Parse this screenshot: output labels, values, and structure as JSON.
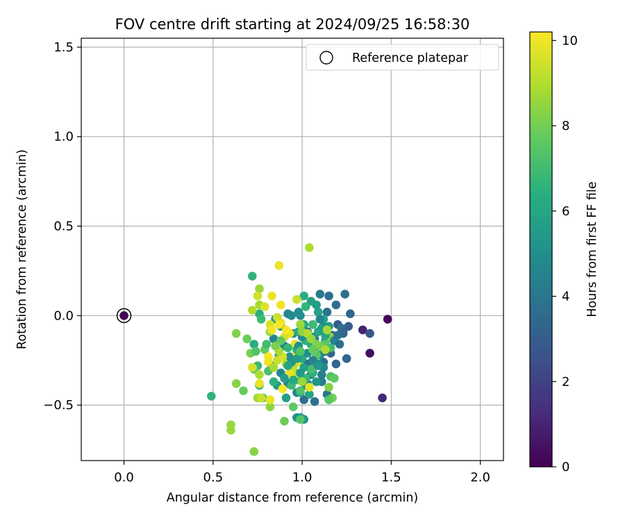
{
  "chart_data": {
    "type": "scatter",
    "title": "FOV centre drift starting at 2024/09/25 16:58:30",
    "xlabel": "Angular distance from reference (arcmin)",
    "ylabel": "Rotation from reference (arcmin)",
    "xlim": [
      -0.24,
      2.13
    ],
    "ylim": [
      -0.81,
      1.55
    ],
    "x_ticks": [
      0.0,
      0.5,
      1.0,
      1.5,
      2.0
    ],
    "x_tick_labels": [
      "0.0",
      "0.5",
      "1.0",
      "1.5",
      "2.0"
    ],
    "y_ticks": [
      -0.5,
      0.0,
      0.5,
      1.0,
      1.5
    ],
    "y_tick_labels": [
      "−0.5",
      "0.0",
      "0.5",
      "1.0",
      "1.5"
    ],
    "grid": true,
    "legend": {
      "placement": "top-right",
      "entries": [
        "Reference platepar"
      ]
    },
    "reference_point": {
      "x": 0.0,
      "y": 0.0,
      "hours": 0.0
    },
    "colorbar": {
      "label": "Hours from first FF file",
      "range": [
        0,
        10.2
      ],
      "ticks": [
        0,
        2,
        4,
        6,
        8,
        10
      ],
      "tick_labels": [
        "0",
        "2",
        "4",
        "6",
        "8",
        "10"
      ],
      "colormap": "viridis"
    },
    "points": [
      [
        1.48,
        -0.02,
        0.2
      ],
      [
        1.45,
        -0.46,
        1.1
      ],
      [
        1.38,
        -0.21,
        0.4
      ],
      [
        1.34,
        -0.08,
        1.0
      ],
      [
        1.38,
        -0.1,
        2.8
      ],
      [
        1.27,
        0.01,
        3.3
      ],
      [
        1.26,
        -0.06,
        3.0
      ],
      [
        1.25,
        -0.24,
        3.3
      ],
      [
        1.23,
        -0.1,
        3.5
      ],
      [
        1.2,
        -0.05,
        2.9
      ],
      [
        1.24,
        0.12,
        3.8
      ],
      [
        1.19,
        -0.27,
        3.4
      ],
      [
        1.19,
        0.06,
        3.6
      ],
      [
        1.15,
        0.11,
        3.7
      ],
      [
        1.1,
        0.12,
        4.2
      ],
      [
        1.14,
        0.02,
        3.9
      ],
      [
        1.17,
        -0.11,
        3.2
      ],
      [
        1.12,
        -0.06,
        3.5
      ],
      [
        1.06,
        -0.05,
        4.1
      ],
      [
        1.07,
        -0.13,
        3.9
      ],
      [
        1.07,
        -0.18,
        3.3
      ],
      [
        1.16,
        -0.21,
        3.4
      ],
      [
        1.12,
        -0.26,
        3.6
      ],
      [
        1.03,
        -0.27,
        3.8
      ],
      [
        1.05,
        -0.33,
        3.9
      ],
      [
        1.11,
        -0.37,
        4.2
      ],
      [
        1.14,
        -0.44,
        4.0
      ],
      [
        1.07,
        -0.48,
        3.8
      ],
      [
        1.15,
        -0.47,
        4.1
      ],
      [
        1.01,
        -0.47,
        3.6
      ],
      [
        1.03,
        -0.38,
        4.3
      ],
      [
        0.97,
        -0.43,
        4.5
      ],
      [
        0.99,
        -0.57,
        4.8
      ],
      [
        1.01,
        -0.58,
        5.3
      ],
      [
        0.97,
        -0.57,
        5.1
      ],
      [
        1.02,
        -0.39,
        4.6
      ],
      [
        0.95,
        -0.31,
        4.9
      ],
      [
        0.93,
        -0.23,
        5.0
      ],
      [
        0.92,
        -0.38,
        4.3
      ],
      [
        0.88,
        -0.32,
        4.7
      ],
      [
        0.9,
        -0.17,
        4.5
      ],
      [
        0.95,
        -0.1,
        4.6
      ],
      [
        0.99,
        0.0,
        4.9
      ],
      [
        0.98,
        0.02,
        5.0
      ],
      [
        0.94,
        0.0,
        4.8
      ],
      [
        0.92,
        0.01,
        4.7
      ],
      [
        0.85,
        -0.02,
        4.8
      ],
      [
        0.84,
        -0.13,
        4.6
      ],
      [
        0.88,
        -0.06,
        5.1
      ],
      [
        0.87,
        -0.22,
        5.2
      ],
      [
        0.83,
        -0.28,
        5.4
      ],
      [
        0.86,
        -0.39,
        5.5
      ],
      [
        0.91,
        -0.46,
        5.7
      ],
      [
        0.99,
        -0.43,
        6.0
      ],
      [
        1.04,
        -0.44,
        5.8
      ],
      [
        1.08,
        -0.37,
        5.3
      ],
      [
        1.1,
        -0.22,
        5.1
      ],
      [
        1.13,
        -0.14,
        5.4
      ],
      [
        1.15,
        -0.06,
        5.6
      ],
      [
        1.12,
        -0.02,
        5.9
      ],
      [
        1.08,
        0.06,
        5.6
      ],
      [
        1.05,
        0.08,
        5.7
      ],
      [
        1.01,
        0.11,
        6.4
      ],
      [
        1.01,
        -0.05,
        6.1
      ],
      [
        0.98,
        -0.09,
        6.3
      ],
      [
        1.02,
        -0.14,
        6.6
      ],
      [
        1.05,
        -0.16,
        6.2
      ],
      [
        1.07,
        -0.26,
        6.1
      ],
      [
        1.06,
        -0.32,
        6.5
      ],
      [
        1.02,
        -0.35,
        6.8
      ],
      [
        0.97,
        -0.36,
        7.1
      ],
      [
        0.94,
        -0.39,
        6.9
      ],
      [
        0.99,
        -0.42,
        7.3
      ],
      [
        0.95,
        -0.51,
        7.6
      ],
      [
        0.9,
        -0.59,
        7.9
      ],
      [
        0.99,
        -0.58,
        7.4
      ],
      [
        0.72,
        0.22,
        6.6
      ],
      [
        0.76,
        0.01,
        6.4
      ],
      [
        0.77,
        -0.02,
        6.9
      ],
      [
        0.73,
        -0.16,
        6.3
      ],
      [
        0.75,
        -0.28,
        6.8
      ],
      [
        0.81,
        -0.31,
        7.2
      ],
      [
        0.84,
        -0.37,
        6.5
      ],
      [
        0.76,
        -0.39,
        6.7
      ],
      [
        0.78,
        -0.46,
        7.2
      ],
      [
        0.49,
        -0.45,
        6.6
      ],
      [
        0.63,
        -0.1,
        8.2
      ],
      [
        0.69,
        -0.13,
        7.9
      ],
      [
        0.71,
        -0.21,
        8.1
      ],
      [
        0.73,
        -0.3,
        7.6
      ],
      [
        0.63,
        -0.38,
        8.3
      ],
      [
        0.67,
        -0.42,
        7.8
      ],
      [
        0.6,
        -0.61,
        8.5
      ],
      [
        0.6,
        -0.64,
        8.6
      ],
      [
        0.73,
        -0.76,
        8.3
      ],
      [
        0.75,
        -0.46,
        8.7
      ],
      [
        0.82,
        -0.51,
        8.4
      ],
      [
        0.79,
        -0.19,
        7.7
      ],
      [
        0.82,
        -0.09,
        8.5
      ],
      [
        0.76,
        0.06,
        8.8
      ],
      [
        0.72,
        0.03,
        9.0
      ],
      [
        0.76,
        0.15,
        8.6
      ],
      [
        0.75,
        0.11,
        9.5
      ],
      [
        0.79,
        0.05,
        9.7
      ],
      [
        0.83,
        0.11,
        9.9
      ],
      [
        0.88,
        0.06,
        10.0
      ],
      [
        0.87,
        0.28,
        9.9
      ],
      [
        0.97,
        0.09,
        9.4
      ],
      [
        1.04,
        0.38,
        8.9
      ],
      [
        1.02,
        0.05,
        6.6
      ],
      [
        1.06,
        -0.05,
        6.9
      ],
      [
        1.09,
        -0.09,
        6.0
      ],
      [
        1.13,
        -0.16,
        7.5
      ],
      [
        1.16,
        -0.18,
        7.0
      ],
      [
        1.16,
        -0.34,
        7.3
      ],
      [
        1.18,
        -0.35,
        7.6
      ],
      [
        1.15,
        -0.4,
        8.2
      ],
      [
        1.17,
        -0.46,
        8.0
      ],
      [
        1.15,
        -0.47,
        7.5
      ],
      [
        1.16,
        -0.12,
        8.4
      ],
      [
        1.1,
        -0.17,
        8.0
      ],
      [
        1.08,
        -0.22,
        7.6
      ],
      [
        1.05,
        -0.3,
        7.1
      ],
      [
        1.04,
        -0.4,
        9.8
      ],
      [
        1.0,
        -0.37,
        8.6
      ],
      [
        0.96,
        -0.33,
        9.2
      ],
      [
        0.98,
        -0.26,
        9.6
      ],
      [
        0.97,
        -0.21,
        10.0
      ],
      [
        0.96,
        -0.16,
        9.9
      ],
      [
        0.93,
        -0.1,
        9.8
      ],
      [
        0.9,
        -0.12,
        9.5
      ],
      [
        0.91,
        -0.08,
        10.1
      ],
      [
        0.88,
        -0.04,
        9.8
      ],
      [
        0.86,
        -0.01,
        9.4
      ],
      [
        0.87,
        -0.05,
        10.1
      ],
      [
        0.82,
        -0.05,
        9.6
      ],
      [
        0.83,
        -0.08,
        10.0
      ],
      [
        0.81,
        -0.23,
        10.1
      ],
      [
        0.81,
        -0.26,
        9.9
      ],
      [
        0.84,
        -0.29,
        8.8
      ],
      [
        0.86,
        -0.25,
        9.3
      ],
      [
        0.89,
        -0.23,
        9.6
      ],
      [
        0.87,
        -0.2,
        8.9
      ],
      [
        0.91,
        -0.27,
        9.0
      ],
      [
        0.95,
        -0.29,
        9.2
      ],
      [
        0.93,
        -0.32,
        9.8
      ],
      [
        0.89,
        -0.41,
        10.1
      ],
      [
        0.82,
        -0.47,
        9.9
      ],
      [
        0.77,
        -0.46,
        9.4
      ],
      [
        0.76,
        -0.38,
        9.9
      ],
      [
        0.76,
        -0.33,
        8.9
      ],
      [
        0.72,
        -0.29,
        9.5
      ],
      [
        0.74,
        -0.2,
        7.3
      ],
      [
        0.8,
        -0.16,
        7.0
      ],
      [
        0.92,
        -0.18,
        6.7
      ],
      [
        0.97,
        -0.19,
        6.4
      ],
      [
        1.0,
        -0.24,
        6.1
      ],
      [
        1.01,
        -0.29,
        5.8
      ],
      [
        0.99,
        -0.32,
        5.5
      ],
      [
        0.94,
        -0.26,
        5.3
      ],
      [
        0.92,
        -0.28,
        5.9
      ],
      [
        0.9,
        -0.35,
        5.6
      ],
      [
        0.95,
        -0.36,
        6.2
      ],
      [
        1.09,
        -0.27,
        5.0
      ],
      [
        1.12,
        -0.29,
        4.8
      ],
      [
        1.11,
        -0.33,
        4.4
      ],
      [
        1.13,
        -0.2,
        4.2
      ],
      [
        1.18,
        -0.14,
        4.6
      ],
      [
        1.2,
        -0.11,
        4.0
      ],
      [
        1.22,
        -0.07,
        3.9
      ],
      [
        1.21,
        -0.16,
        3.7
      ],
      [
        1.23,
        -0.09,
        3.4
      ],
      [
        1.03,
        -0.09,
        4.3
      ],
      [
        1.0,
        -0.12,
        4.9
      ],
      [
        0.98,
        -0.17,
        5.2
      ],
      [
        0.97,
        -0.24,
        5.6
      ],
      [
        1.03,
        -0.21,
        5.0
      ],
      [
        1.06,
        -0.25,
        4.6
      ],
      [
        1.09,
        -0.28,
        5.3
      ],
      [
        1.06,
        -0.12,
        5.5
      ],
      [
        1.11,
        -0.07,
        5.7
      ],
      [
        1.13,
        -0.11,
        6.0
      ],
      [
        1.09,
        0.02,
        5.8
      ],
      [
        1.1,
        -0.02,
        4.7
      ],
      [
        0.99,
        -0.05,
        8.7
      ],
      [
        1.0,
        -0.09,
        8.4
      ],
      [
        1.03,
        -0.1,
        9.0
      ],
      [
        1.05,
        -0.13,
        8.6
      ],
      [
        1.08,
        -0.16,
        8.2
      ],
      [
        1.14,
        -0.08,
        8.8
      ],
      [
        1.13,
        -0.19,
        8.9
      ],
      [
        1.06,
        -0.19,
        7.8
      ],
      [
        0.99,
        -0.2,
        7.4
      ],
      [
        0.88,
        -0.14,
        7.6
      ],
      [
        0.85,
        -0.17,
        8.1
      ]
    ]
  }
}
